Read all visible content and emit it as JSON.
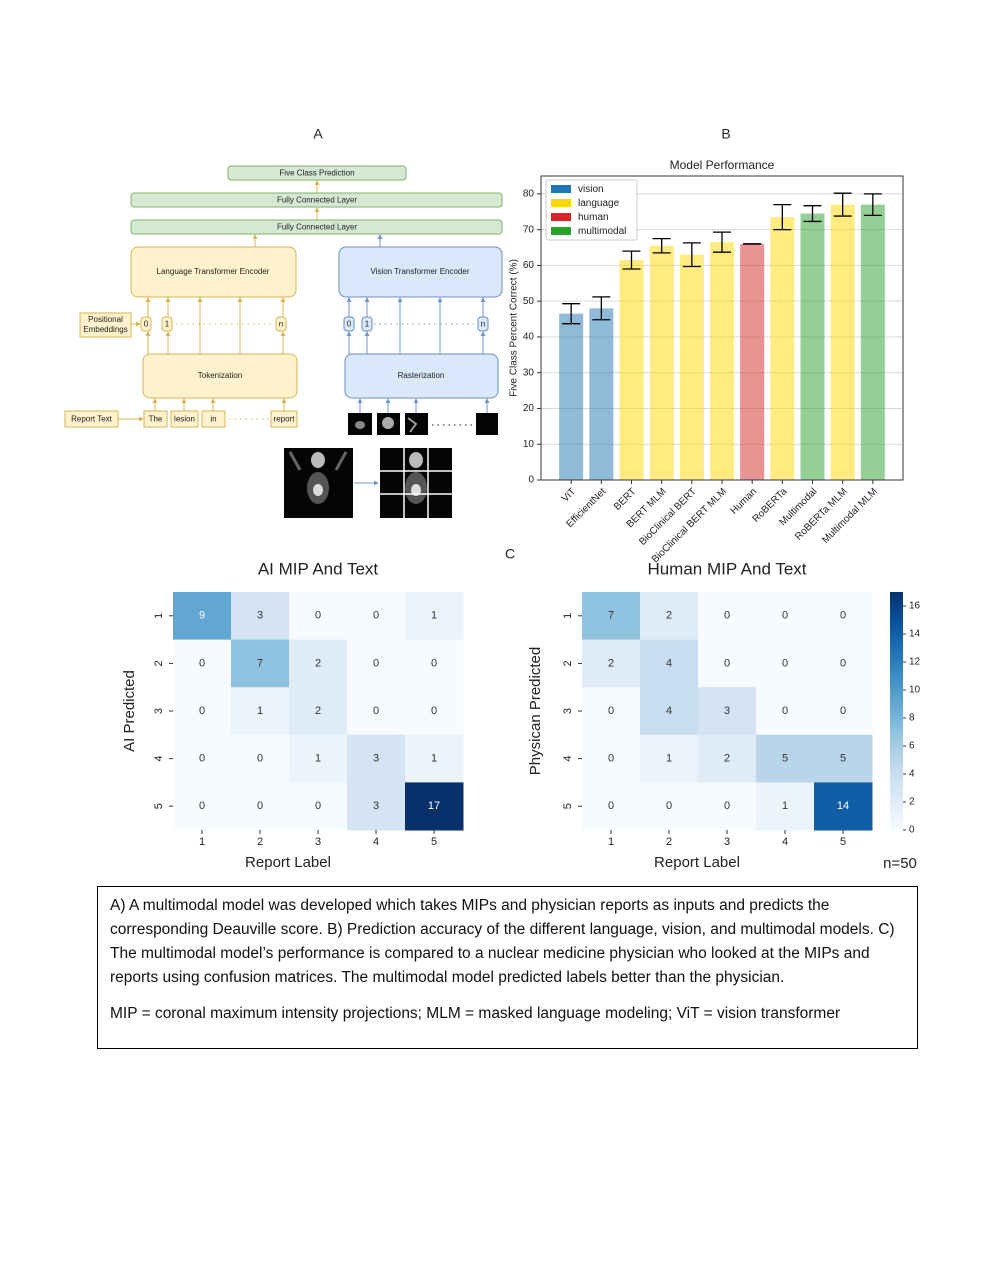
{
  "panel_labels": [
    "A",
    "B",
    "C"
  ],
  "diagram": {
    "nodes": [
      {
        "label": "Five Class Prediction"
      },
      {
        "label": "Fully Connected Layer"
      },
      {
        "label": "Fully Connected Layer"
      },
      {
        "label": "Language Transformer Encoder"
      },
      {
        "label": "Vision Transformer Encoder"
      },
      {
        "lines": [
          "Positional",
          "Embeddings"
        ]
      },
      {
        "label": "Tokenization"
      },
      {
        "label": "Rasterization"
      },
      {
        "label": "Report Text"
      }
    ],
    "tokens": [
      "The",
      "lesion",
      "in",
      "report"
    ],
    "language_embeddings": [
      "0",
      "1",
      "n"
    ],
    "vision_embeddings": [
      "0",
      "1",
      "n"
    ]
  },
  "chart_data": [
    {
      "type": "bar",
      "title": "Model Performance",
      "ylabel": "Five Class Percent Correct (%)",
      "categories": [
        "ViT",
        "EfficientNet",
        "BERT",
        "BERT MLM",
        "BioClinical BERT",
        "BioClinical BERT MLM",
        "Human",
        "RoBERTa",
        "Multimodal",
        "RoBERTa MLM",
        "Multimodal MLM"
      ],
      "series": [
        {
          "name": "vision",
          "color": "#1f77b4",
          "values": [
            46.5,
            48,
            null,
            null,
            null,
            null,
            null,
            null,
            null,
            null,
            null
          ],
          "errors": [
            2.8,
            3.2,
            null,
            null,
            null,
            null,
            null,
            null,
            null,
            null,
            null
          ]
        },
        {
          "name": "language",
          "color": "#ffd700",
          "values": [
            null,
            null,
            61.5,
            65.5,
            63,
            66.5,
            null,
            73.5,
            null,
            77,
            null
          ],
          "errors": [
            null,
            null,
            2.5,
            2,
            3.3,
            2.8,
            null,
            3.5,
            null,
            3.2,
            null
          ]
        },
        {
          "name": "human",
          "color": "#d62728",
          "values": [
            null,
            null,
            null,
            null,
            null,
            null,
            66,
            null,
            null,
            null,
            null
          ],
          "errors": [
            null,
            null,
            null,
            null,
            null,
            null,
            0,
            null,
            null,
            null,
            null
          ]
        },
        {
          "name": "multimodal",
          "color": "#2ca02c",
          "values": [
            null,
            null,
            null,
            null,
            null,
            null,
            null,
            null,
            74.5,
            null,
            77
          ],
          "errors": [
            null,
            null,
            null,
            null,
            null,
            null,
            null,
            null,
            2.2,
            null,
            3
          ]
        }
      ],
      "alpha": 0.5,
      "ylim": [
        0,
        85
      ],
      "yticks": [
        0,
        10,
        20,
        30,
        40,
        50,
        60,
        70,
        80
      ],
      "grid": true,
      "legend": "upper left"
    },
    {
      "type": "heatmap",
      "title": "AI MIP And Text",
      "xlabel": "Report Label",
      "ylabel": "AI Predicted",
      "xcategories": [
        "1",
        "2",
        "3",
        "4",
        "5"
      ],
      "ycategories": [
        "1",
        "2",
        "3",
        "4",
        "5"
      ],
      "values": [
        [
          9,
          3,
          0,
          0,
          1
        ],
        [
          0,
          7,
          2,
          0,
          0
        ],
        [
          0,
          1,
          2,
          0,
          0
        ],
        [
          0,
          0,
          1,
          3,
          1
        ],
        [
          0,
          0,
          0,
          3,
          17
        ]
      ],
      "colormap": "Blues",
      "vmin": 0,
      "vmax": 17
    },
    {
      "type": "heatmap",
      "title": "Human MIP And Text",
      "xlabel": "Report Label",
      "ylabel": "Physican Predicted",
      "xcategories": [
        "1",
        "2",
        "3",
        "4",
        "5"
      ],
      "ycategories": [
        "1",
        "2",
        "3",
        "4",
        "5"
      ],
      "values": [
        [
          7,
          2,
          0,
          0,
          0
        ],
        [
          2,
          4,
          0,
          0,
          0
        ],
        [
          0,
          4,
          3,
          0,
          0
        ],
        [
          0,
          1,
          2,
          5,
          5
        ],
        [
          0,
          0,
          0,
          1,
          14
        ]
      ],
      "colormap": "Blues",
      "vmin": 0,
      "vmax": 17,
      "colorbar_ticks": [
        0,
        2,
        4,
        6,
        8,
        10,
        12,
        14,
        16
      ],
      "annotation": "n=50"
    }
  ],
  "caption": {
    "paragraphs": [
      "A) A multimodal model was developed which takes MIPs and physician reports as inputs and predicts the corresponding Deauville score. B) Prediction accuracy of the different language, vision, and multimodal models. C) The multimodal model’s performance is compared to a nuclear medicine physician who looked at the MIPs and reports using confusion matrices. The multimodal model predicted labels better than the physician.",
      "MIP = coronal maximum intensity projections; MLM = masked language modeling; ViT = vision transformer"
    ]
  }
}
